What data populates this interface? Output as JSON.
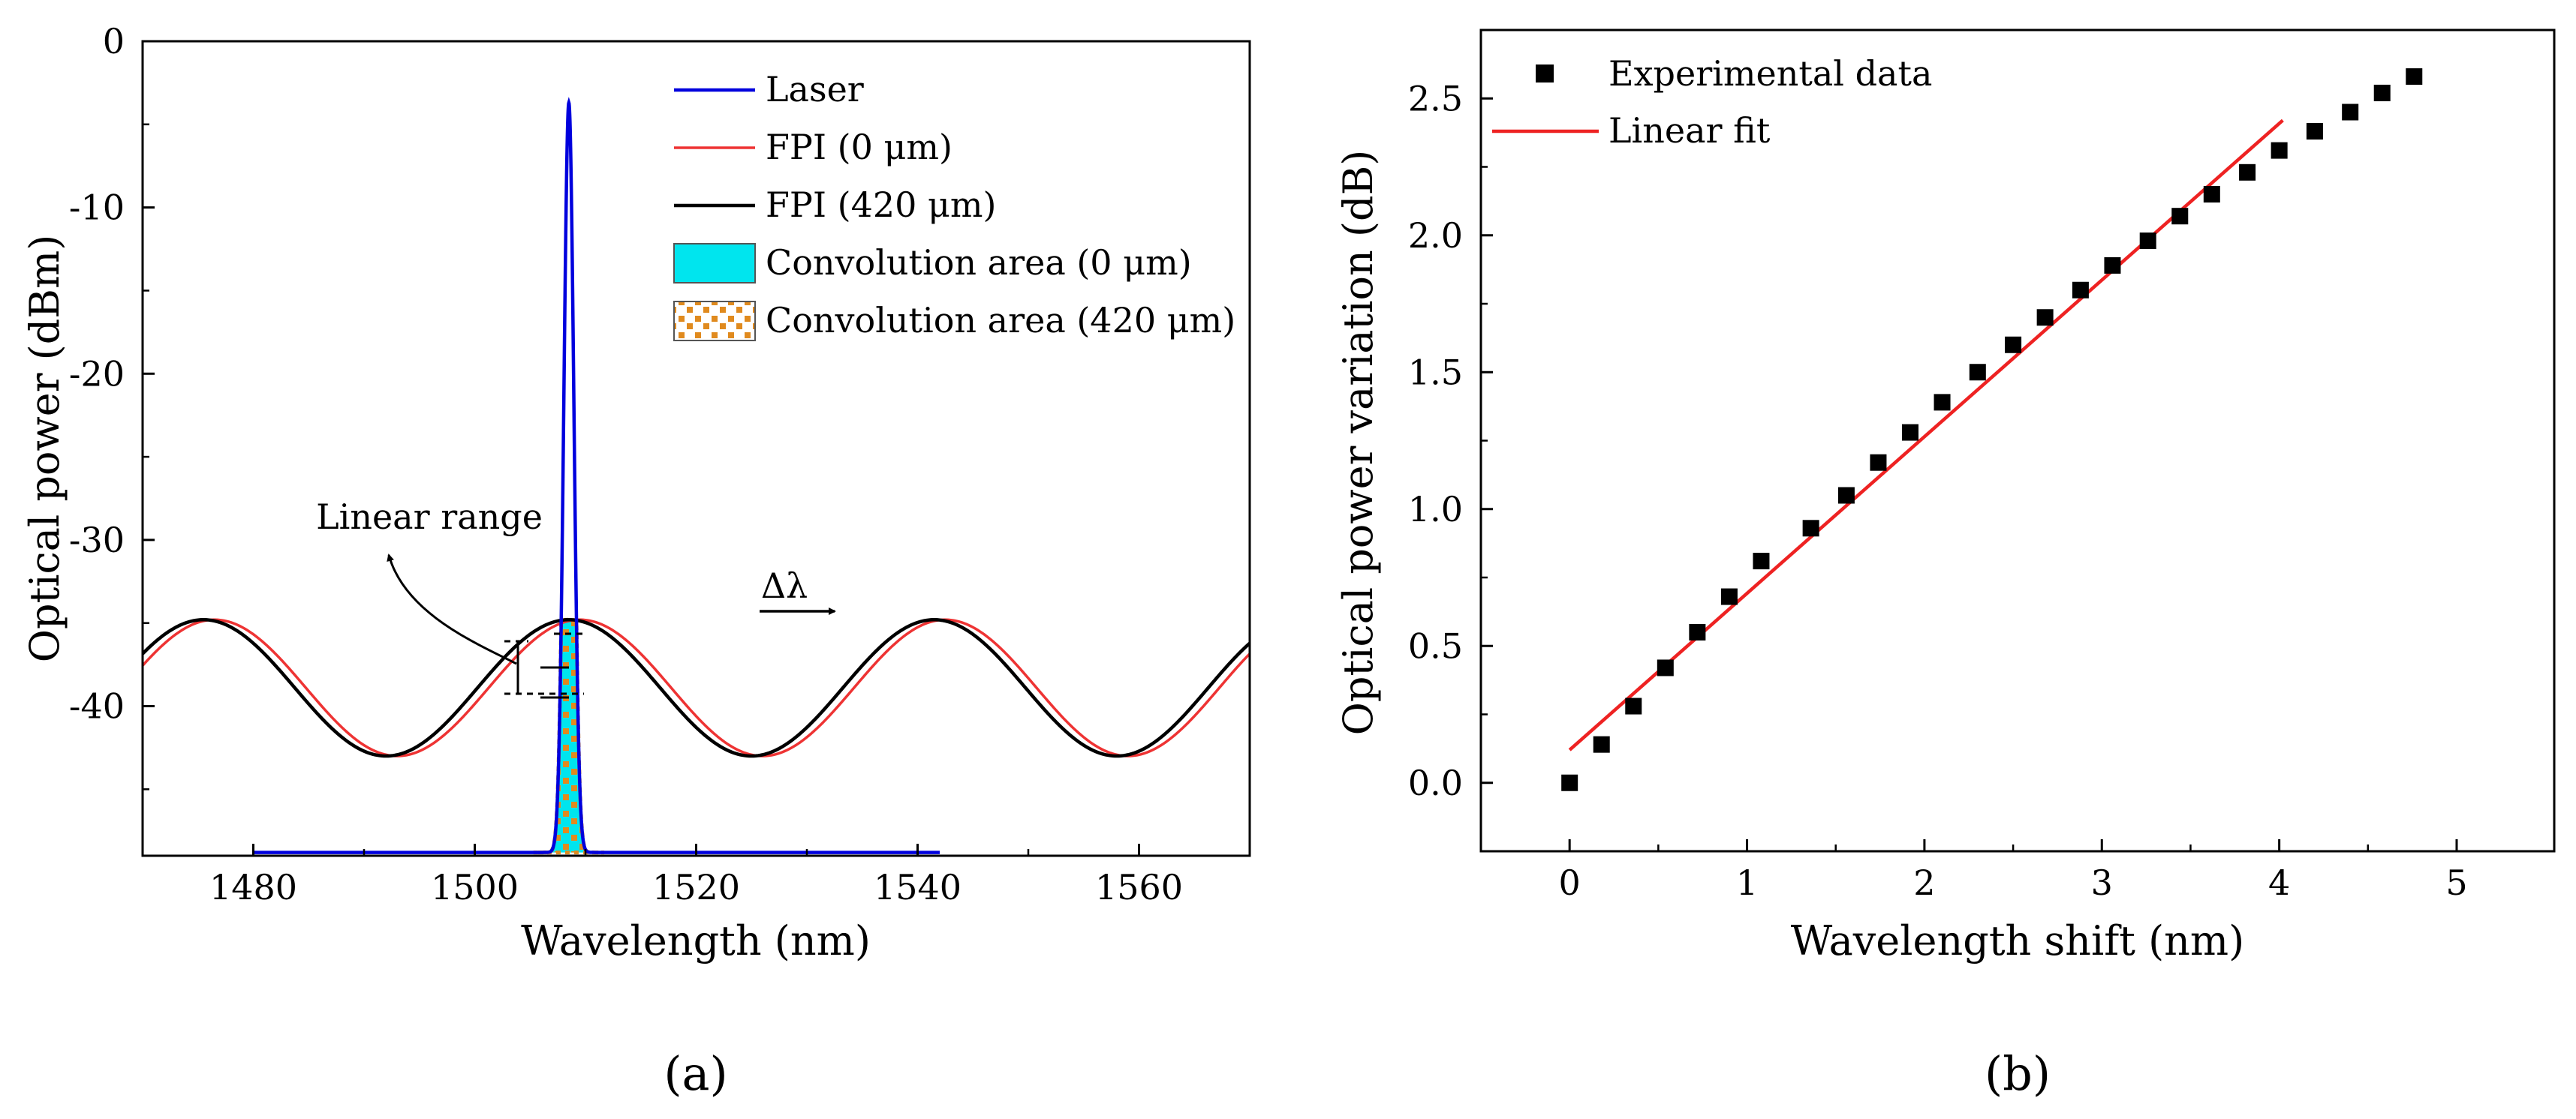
{
  "chart_data": [
    {
      "type": "line",
      "panel_label": "(a)",
      "xlabel": "Wavelength (nm)",
      "ylabel": "Optical power (dBm)",
      "xlim": [
        1470,
        1570
      ],
      "ylim": [
        -49,
        0
      ],
      "xticks": [
        1480,
        1500,
        1520,
        1540,
        1560
      ],
      "yticks": [
        0,
        -10,
        -20,
        -30,
        -40
      ],
      "legend_position": "top-right",
      "legend": [
        {
          "label": "Laser",
          "color": "#0000dd",
          "kind": "line"
        },
        {
          "label": "FPI (0 μm)",
          "color": "#ee3333",
          "kind": "line"
        },
        {
          "label": "FPI (420 μm)",
          "color": "#000000",
          "kind": "line"
        },
        {
          "label": "Convolution area (0 μm)",
          "color": "#00e5ee",
          "kind": "fill"
        },
        {
          "label": "Convolution area (420 μm)",
          "color": "#e08a1e",
          "kind": "dotted-fill"
        }
      ],
      "series": [
        {
          "name": "Laser",
          "color": "#0000dd",
          "model": "gaussian",
          "center": 1508.5,
          "peak": -3.7,
          "sigma": 0.45,
          "floor": -48.8,
          "x_range": [
            1480,
            1542
          ]
        },
        {
          "name": "FPI (0 μm)",
          "color": "#ee3333",
          "model": "cosine",
          "max": -34.8,
          "min": -43.0,
          "period": 33,
          "peak_at": 1476.5
        },
        {
          "name": "FPI (420 μm)",
          "color": "#000000",
          "model": "cosine",
          "max": -34.8,
          "min": -43.0,
          "period": 33,
          "peak_at": 1475.5
        }
      ],
      "annotations": [
        {
          "text": "Linear range",
          "x": 1496,
          "y": -28.3
        },
        {
          "text": "Δλ",
          "x": 1528.5,
          "y": -32.8
        }
      ]
    },
    {
      "type": "scatter",
      "panel_label": "(b)",
      "xlabel": "Wavelength shift (nm)",
      "ylabel": "Optical power variation (dB)",
      "xlim": [
        -0.5,
        5.55
      ],
      "ylim": [
        -0.25,
        2.75
      ],
      "xticks": [
        0,
        1,
        2,
        3,
        4,
        5
      ],
      "yticks": [
        0.0,
        0.5,
        1.0,
        1.5,
        2.0,
        2.5
      ],
      "legend_position": "top-left",
      "legend": [
        {
          "label": "Experimental data",
          "color": "#000000",
          "kind": "marker"
        },
        {
          "label": "Linear fit",
          "color": "#ee2222",
          "kind": "line"
        }
      ],
      "series": [
        {
          "name": "Experimental data",
          "color": "#000000",
          "x": [
            0,
            0.18,
            0.36,
            0.54,
            0.72,
            0.9,
            1.08,
            1.36,
            1.56,
            1.74,
            1.92,
            2.1,
            2.3,
            2.5,
            2.68,
            2.88,
            3.06,
            3.26,
            3.44,
            3.62,
            3.82,
            4.0,
            4.2,
            4.4,
            4.58,
            4.76
          ],
          "y": [
            0.0,
            0.14,
            0.28,
            0.42,
            0.55,
            0.68,
            0.81,
            0.93,
            1.05,
            1.17,
            1.28,
            1.39,
            1.5,
            1.6,
            1.7,
            1.8,
            1.89,
            1.98,
            2.07,
            2.15,
            2.23,
            2.31,
            2.38,
            2.45,
            2.52,
            2.58
          ]
        },
        {
          "name": "Linear fit",
          "color": "#ee2222",
          "x": [
            0,
            4.02
          ],
          "y": [
            0.12,
            2.42
          ]
        }
      ]
    }
  ]
}
